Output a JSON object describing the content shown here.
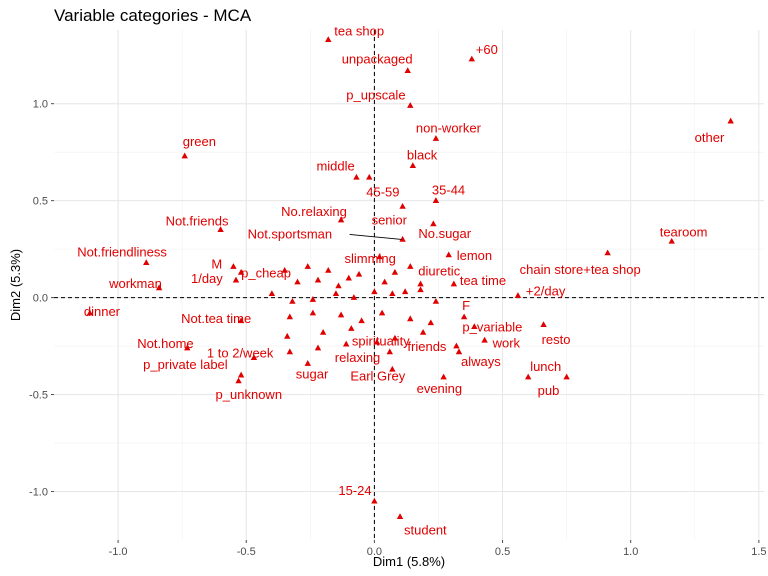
{
  "chart_data": {
    "type": "scatter",
    "title": "Variable categories - MCA",
    "xlabel": "Dim1 (5.8%)",
    "ylabel": "Dim2 (5.3%)",
    "xlim": [
      -1.25,
      1.52
    ],
    "ylim": [
      -1.25,
      1.38
    ],
    "xticks": [
      -1.0,
      -0.5,
      0.0,
      0.5,
      1.0,
      1.5
    ],
    "xtick_labels": [
      "-1.0",
      "-0.5",
      "0.0",
      "0.5",
      "1.0",
      "1.5"
    ],
    "yticks": [
      -1.0,
      -0.5,
      0.0,
      0.5,
      1.0
    ],
    "ytick_labels": [
      "-1.0",
      "-0.5",
      "0.0",
      "0.5",
      "1.0"
    ],
    "grid": true,
    "reference_lines": {
      "x": 0,
      "y": 0,
      "style": "dashed"
    },
    "marker_color": "#e00000",
    "points": [
      {
        "label": "tea shop",
        "x": -0.18,
        "y": 1.33
      },
      {
        "label": "+60",
        "x": 0.38,
        "y": 1.23
      },
      {
        "label": "unpackaged",
        "x": 0.13,
        "y": 1.17
      },
      {
        "label": "p_upscale",
        "x": 0.14,
        "y": 0.99
      },
      {
        "label": "non-worker",
        "x": 0.24,
        "y": 0.82
      },
      {
        "label": "other",
        "x": 1.39,
        "y": 0.91
      },
      {
        "label": "green",
        "x": -0.74,
        "y": 0.73
      },
      {
        "label": "middle",
        "x": -0.07,
        "y": 0.62
      },
      {
        "label": "black",
        "x": 0.15,
        "y": 0.68
      },
      {
        "label": "45-59",
        "x": -0.02,
        "y": 0.62
      },
      {
        "label": "35-44",
        "x": 0.24,
        "y": 0.5
      },
      {
        "label": "No.relaxing",
        "x": -0.13,
        "y": 0.4
      },
      {
        "label": "senior",
        "x": 0.11,
        "y": 0.47
      },
      {
        "label": "No.sugar",
        "x": 0.23,
        "y": 0.38
      },
      {
        "label": "Not.friends",
        "x": -0.6,
        "y": 0.35
      },
      {
        "label": "tearoom",
        "x": 1.16,
        "y": 0.29
      },
      {
        "label": "Not.sportsman",
        "x": 0.11,
        "y": 0.3
      },
      {
        "label": "lemon",
        "x": 0.29,
        "y": 0.22
      },
      {
        "label": "slimming",
        "x": 0.02,
        "y": 0.21
      },
      {
        "label": "chain store+tea shop",
        "x": 0.91,
        "y": 0.23
      },
      {
        "label": "Not.friendliness",
        "x": -0.89,
        "y": 0.18
      },
      {
        "label": "M",
        "x": -0.55,
        "y": 0.16
      },
      {
        "label": "p_cheap",
        "x": -0.52,
        "y": 0.13
      },
      {
        "label": "diuretic",
        "x": 0.14,
        "y": 0.16
      },
      {
        "label": "workman",
        "x": -0.84,
        "y": 0.05
      },
      {
        "label": "1/day",
        "x": -0.54,
        "y": 0.09
      },
      {
        "label": "tea time",
        "x": 0.31,
        "y": 0.07
      },
      {
        "label": "+2/day",
        "x": 0.56,
        "y": 0.01
      },
      {
        "label": "dinner",
        "x": -1.11,
        "y": -0.08
      },
      {
        "label": "Not.tea time",
        "x": -0.52,
        "y": -0.12
      },
      {
        "label": "F",
        "x": 0.35,
        "y": -0.1
      },
      {
        "label": "p_variable",
        "x": 0.39,
        "y": -0.15
      },
      {
        "label": "resto",
        "x": 0.66,
        "y": -0.14
      },
      {
        "label": "spirituality",
        "x": 0.08,
        "y": -0.21
      },
      {
        "label": "Not.home",
        "x": -0.73,
        "y": -0.26
      },
      {
        "label": "1 to 2/week",
        "x": -0.47,
        "y": -0.31
      },
      {
        "label": "work",
        "x": 0.43,
        "y": -0.22
      },
      {
        "label": "friends",
        "x": 0.32,
        "y": -0.25
      },
      {
        "label": "relaxing",
        "x": 0.06,
        "y": -0.28
      },
      {
        "label": "always",
        "x": 0.33,
        "y": -0.28
      },
      {
        "label": "p_private label",
        "x": -0.52,
        "y": -0.4
      },
      {
        "label": "sugar",
        "x": -0.26,
        "y": -0.34
      },
      {
        "label": "lunch",
        "x": 0.6,
        "y": -0.41
      },
      {
        "label": "pub",
        "x": 0.75,
        "y": -0.41
      },
      {
        "label": "Earl Grey",
        "x": 0.07,
        "y": -0.37
      },
      {
        "label": "evening",
        "x": 0.27,
        "y": -0.41
      },
      {
        "label": "p_unknown",
        "x": -0.53,
        "y": -0.43
      },
      {
        "label": "15-24",
        "x": 0.0,
        "y": -1.05
      },
      {
        "label": "student",
        "x": 0.1,
        "y": -1.13
      },
      {
        "label": "",
        "x": -0.35,
        "y": 0.14
      },
      {
        "label": "",
        "x": -0.3,
        "y": 0.08
      },
      {
        "label": "",
        "x": -0.26,
        "y": 0.16
      },
      {
        "label": "",
        "x": -0.22,
        "y": 0.09
      },
      {
        "label": "",
        "x": -0.18,
        "y": 0.14
      },
      {
        "label": "",
        "x": -0.14,
        "y": 0.06
      },
      {
        "label": "",
        "x": -0.1,
        "y": 0.1
      },
      {
        "label": "",
        "x": -0.06,
        "y": 0.12
      },
      {
        "label": "",
        "x": 0.04,
        "y": 0.08
      },
      {
        "label": "",
        "x": 0.08,
        "y": 0.13
      },
      {
        "label": "",
        "x": 0.18,
        "y": 0.07
      },
      {
        "label": "",
        "x": -0.4,
        "y": 0.02
      },
      {
        "label": "",
        "x": -0.32,
        "y": -0.02
      },
      {
        "label": "",
        "x": -0.24,
        "y": -0.01
      },
      {
        "label": "",
        "x": -0.15,
        "y": 0.02
      },
      {
        "label": "",
        "x": -0.08,
        "y": 0.0
      },
      {
        "label": "",
        "x": 0.0,
        "y": 0.03
      },
      {
        "label": "",
        "x": 0.07,
        "y": 0.02
      },
      {
        "label": "",
        "x": 0.12,
        "y": 0.03
      },
      {
        "label": "",
        "x": 0.18,
        "y": 0.04
      },
      {
        "label": "",
        "x": 0.24,
        "y": -0.02
      },
      {
        "label": "",
        "x": -0.33,
        "y": -0.1
      },
      {
        "label": "",
        "x": -0.24,
        "y": -0.08
      },
      {
        "label": "",
        "x": -0.13,
        "y": -0.09
      },
      {
        "label": "",
        "x": -0.05,
        "y": -0.12
      },
      {
        "label": "",
        "x": 0.03,
        "y": -0.08
      },
      {
        "label": "",
        "x": 0.14,
        "y": -0.11
      },
      {
        "label": "",
        "x": 0.22,
        "y": -0.13
      },
      {
        "label": "",
        "x": -0.34,
        "y": -0.2
      },
      {
        "label": "",
        "x": -0.2,
        "y": -0.18
      },
      {
        "label": "",
        "x": -0.09,
        "y": -0.16
      },
      {
        "label": "",
        "x": 0.19,
        "y": -0.18
      },
      {
        "label": "",
        "x": -0.33,
        "y": -0.28
      },
      {
        "label": "",
        "x": -0.22,
        "y": -0.26
      },
      {
        "label": "",
        "x": -0.11,
        "y": -0.24
      },
      {
        "label": "",
        "x": 0.01,
        "y": -0.23
      }
    ]
  }
}
